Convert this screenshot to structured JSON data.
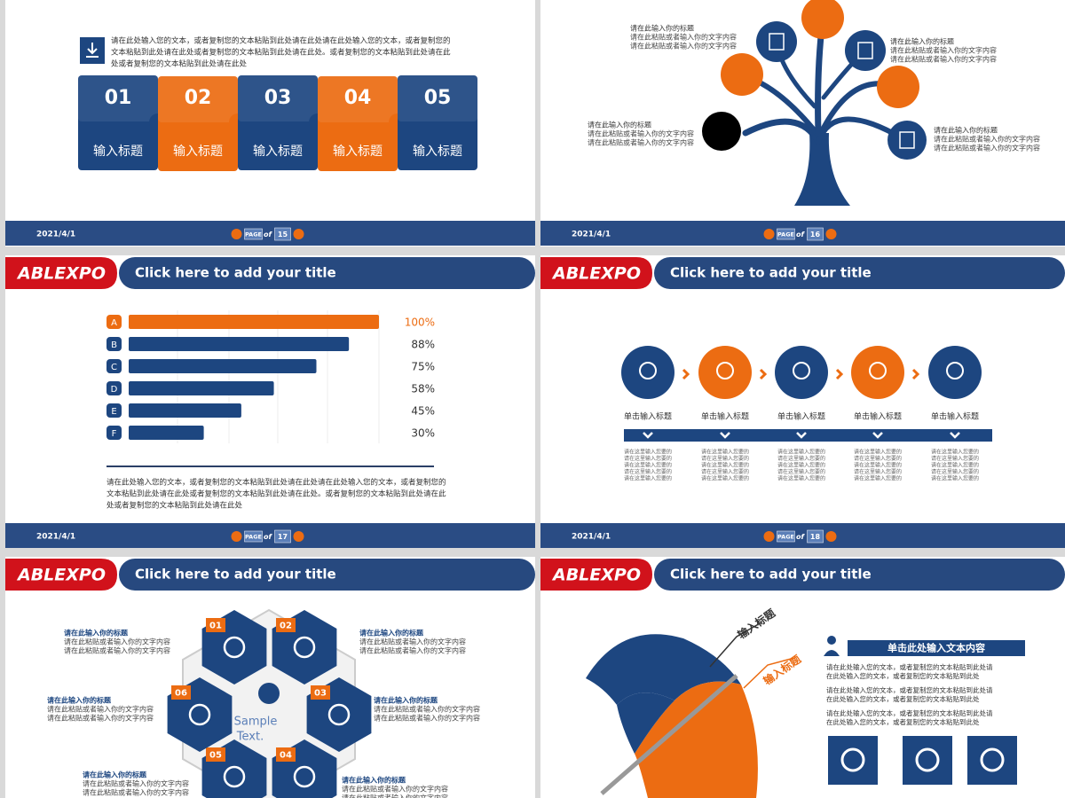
{
  "footer": {
    "date": "2021/4/1",
    "page": "PAGE",
    "of": "of"
  },
  "header": {
    "logo": "ABLEXPO",
    "title": "Click here to add your title"
  },
  "slides": [
    {
      "page": "15",
      "paragraph": [
        "请在此处输入您的文本，或者复制您的文本粘贴到此处请在此处请在此处输入您的文本，或者复制您的",
        "文本粘贴到此处请在此处或者复制您的文本粘贴到此处请在此处。或者复制您的文本粘贴到此处请在此",
        "处或者复制您的文本粘贴到此处请在此处"
      ],
      "steps": [
        {
          "number": "01",
          "label": "输入标题"
        },
        {
          "number": "02",
          "label": "输入标题"
        },
        {
          "number": "03",
          "label": "输入标题"
        },
        {
          "number": "04",
          "label": "输入标题"
        },
        {
          "number": "05",
          "label": "输入标题"
        }
      ]
    },
    {
      "page": "16",
      "blocks": [
        {
          "title": "请在此输入你的标题",
          "lines": [
            "请在此粘贴或者输入你的文字内容",
            "请在此粘贴或者输入你的文字内容"
          ]
        },
        {
          "title": "请在此输入你的标题",
          "lines": [
            "请在此粘贴或者输入你的文字内容",
            "请在此粘贴或者输入你的文字内容"
          ]
        },
        {
          "title": "请在此输入你的标题",
          "lines": [
            "请在此粘贴或者输入你的文字内容",
            "请在此粘贴或者输入你的文字内容"
          ]
        },
        {
          "title": "请在此输入你的标题",
          "lines": [
            "请在此粘贴或者输入你的文字内容",
            "请在此粘贴或者输入你的文字内容"
          ]
        }
      ]
    },
    {
      "page": "17",
      "bars": {
        "categories": [
          "A",
          "B",
          "C",
          "D",
          "E",
          "F"
        ],
        "values": [
          100,
          88,
          75,
          58,
          45,
          30
        ],
        "value_labels": [
          "100%",
          "88%",
          "75%",
          "58%",
          "45%",
          "30%"
        ],
        "colors": [
          "#ec6c12",
          "#1d4680",
          "#1d4680",
          "#1d4680",
          "#1d4680",
          "#1d4680"
        ]
      },
      "paragraph": [
        "请在此处输入您的文本，或者复制您的文本粘贴到此处请在此处请在此处输入您的文本，或者复制您的",
        "文本粘贴到此处请在此处或者复制您的文本粘贴到此处请在此处。或者复制您的文本粘贴到此处请在此",
        "处或者复制您的文本粘贴到此处请在此处"
      ]
    },
    {
      "page": "18",
      "steps": [
        {
          "label": "单击输入标题",
          "lines": [
            "请在这里输入您要的",
            "请在这里输入您要的",
            "请在这里输入您要的",
            "请在这里输入您要的",
            "请在这里输入您要的"
          ]
        },
        {
          "label": "单击输入标题",
          "lines": [
            "请在这里输入您要的",
            "请在这里输入您要的",
            "请在这里输入您要的",
            "请在这里输入您要的",
            "请在这里输入您要的"
          ]
        },
        {
          "label": "单击输入标题",
          "lines": [
            "请在这里输入您要的",
            "请在这里输入您要的",
            "请在这里输入您要的",
            "请在这里输入您要的",
            "请在这里输入您要的"
          ]
        },
        {
          "label": "单击输入标题",
          "lines": [
            "请在这里输入您要的",
            "请在这里输入您要的",
            "请在这里输入您要的",
            "请在这里输入您要的",
            "请在这里输入您要的"
          ]
        },
        {
          "label": "单击输入标题",
          "lines": [
            "请在这里输入您要的",
            "请在这里输入您要的",
            "请在这里输入您要的",
            "请在这里输入您要的",
            "请在这里输入您要的"
          ]
        }
      ]
    },
    {
      "hexes": [
        "01",
        "02",
        "03",
        "04",
        "05",
        "06"
      ],
      "center": [
        "Sample",
        "Text."
      ],
      "blocks": [
        {
          "title": "请在此输入你的标题",
          "lines": [
            "请在此粘贴或者输入你的文字内容",
            "请在此粘贴或者输入你的文字内容"
          ]
        },
        {
          "title": "请在此输入你的标题",
          "lines": [
            "请在此粘贴或者输入你的文字内容",
            "请在此粘贴或者输入你的文字内容"
          ]
        },
        {
          "title": "请在此输入你的标题",
          "lines": [
            "请在此粘贴或者输入你的文字内容",
            "请在此粘贴或者输入你的文字内容"
          ]
        },
        {
          "title": "请在此输入你的标题",
          "lines": [
            "请在此粘贴或者输入你的文字内容",
            "请在此粘贴或者输入你的文字内容"
          ]
        },
        {
          "title": "请在此输入你的标题",
          "lines": [
            "请在此粘贴或者输入你的文字内容",
            "请在此粘贴或者输入你的文字内容"
          ]
        },
        {
          "title": "请在此输入你的标题",
          "lines": [
            "请在此粘贴或者输入你的文字内容",
            "请在此粘贴或者输入你的文字内容"
          ]
        }
      ]
    },
    {
      "tags": [
        "输入标题",
        "输入标题"
      ],
      "heading": "单击此处输入文本内容",
      "paragraphs": [
        [
          "请在此处输入您的文本，或者复制您的文本粘贴到此处请",
          "在此处输入您的文本，或者复制您的文本粘贴到此处"
        ],
        [
          "请在此处输入您的文本，或者复制您的文本粘贴到此处请",
          "在此处输入您的文本，或者复制您的文本粘贴到此处"
        ],
        [
          "请在此处输入您的文本，或者复制您的文本粘贴到此处请",
          "在此处输入您的文本，或者复制您的文本粘贴到此处"
        ]
      ]
    }
  ]
}
